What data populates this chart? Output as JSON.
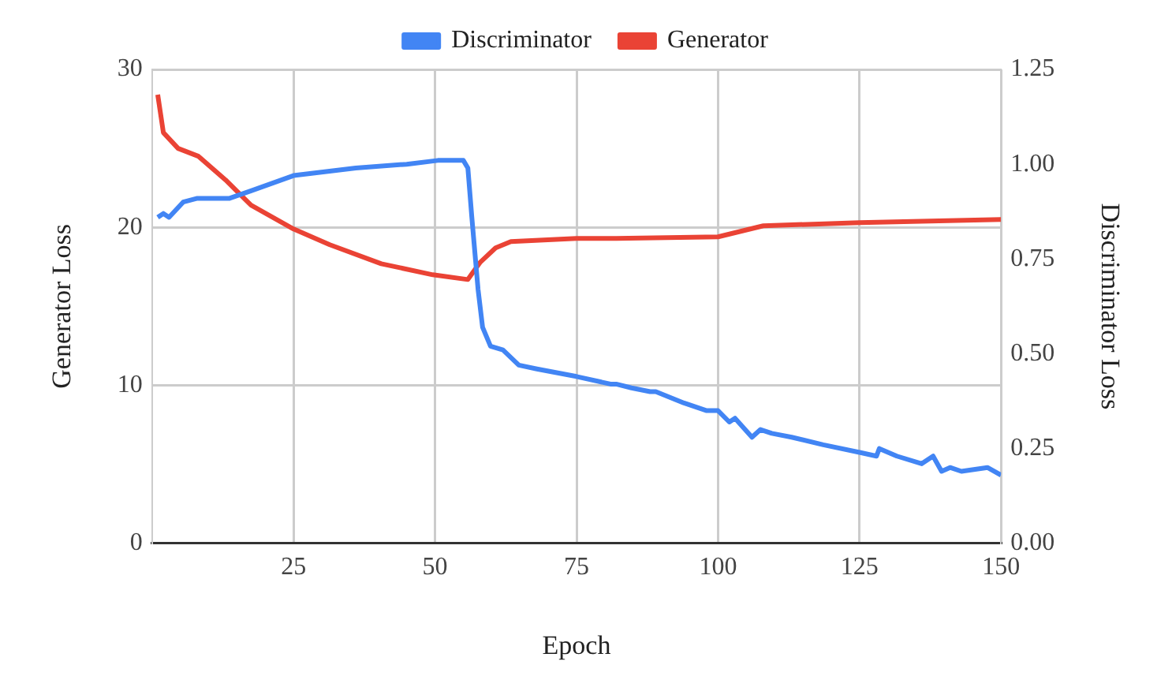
{
  "chart_data": {
    "type": "line",
    "xlabel": "Epoch",
    "ylabel": "Generator Loss",
    "y2label": "Discriminator Loss",
    "xlim": [
      0,
      150
    ],
    "xticks": [
      25,
      50,
      75,
      100,
      125,
      150
    ],
    "ylim": [
      0,
      30
    ],
    "yticks": [
      0,
      10,
      20,
      30
    ],
    "y2lim": [
      0,
      1.25
    ],
    "y2ticks": [
      {
        "value": 0,
        "label": "0.00"
      },
      {
        "value": 0.25,
        "label": "0.25"
      },
      {
        "value": 0.5,
        "label": "0.50"
      },
      {
        "value": 0.75,
        "label": "0.75"
      },
      {
        "value": 1,
        "label": "1.00"
      },
      {
        "value": 1.25,
        "label": "1.25"
      }
    ],
    "grid": true,
    "legend": "top",
    "marker": "none",
    "line_style": "solid",
    "series": [
      {
        "name": "Discriminator",
        "color": "#4285f4",
        "axis": "y2",
        "x": [
          1,
          2,
          3,
          5.5,
          8,
          13.7,
          17.5,
          25,
          36,
          45,
          50.5,
          55,
          55.8,
          56.5,
          57.6,
          58.4,
          59.8,
          62,
          64.8,
          68,
          75,
          81,
          82,
          84.7,
          88,
          89,
          94,
          98,
          100,
          102,
          103,
          106,
          107.5,
          109.5,
          113,
          118.6,
          125,
          128,
          128.5,
          131.6,
          136,
          138,
          139.5,
          141,
          143,
          147.6,
          150
        ],
        "values": [
          0.86,
          0.87,
          0.86,
          0.9,
          0.91,
          0.91,
          0.93,
          0.97,
          0.99,
          1.0,
          1.01,
          1.01,
          0.99,
          0.86,
          0.67,
          0.57,
          0.52,
          0.51,
          0.47,
          0.46,
          0.44,
          0.42,
          0.42,
          0.41,
          0.4,
          0.4,
          0.37,
          0.35,
          0.35,
          0.32,
          0.33,
          0.28,
          0.3,
          0.29,
          0.28,
          0.26,
          0.24,
          0.23,
          0.25,
          0.23,
          0.21,
          0.23,
          0.19,
          0.2,
          0.19,
          0.2,
          0.18
        ]
      },
      {
        "name": "Generator",
        "color": "#ea4335",
        "x": [
          1,
          2,
          4.6,
          8.2,
          13,
          17.5,
          25,
          31.4,
          40.5,
          49.6,
          55.8,
          58,
          60.7,
          63.4,
          75,
          82,
          100,
          108,
          125,
          150
        ],
        "values": [
          28.4,
          26.0,
          25.0,
          24.5,
          23.0,
          21.4,
          19.9,
          18.9,
          17.7,
          17.0,
          16.7,
          17.8,
          18.7,
          19.1,
          19.3,
          19.3,
          19.4,
          20.1,
          20.3,
          20.5
        ]
      }
    ]
  }
}
